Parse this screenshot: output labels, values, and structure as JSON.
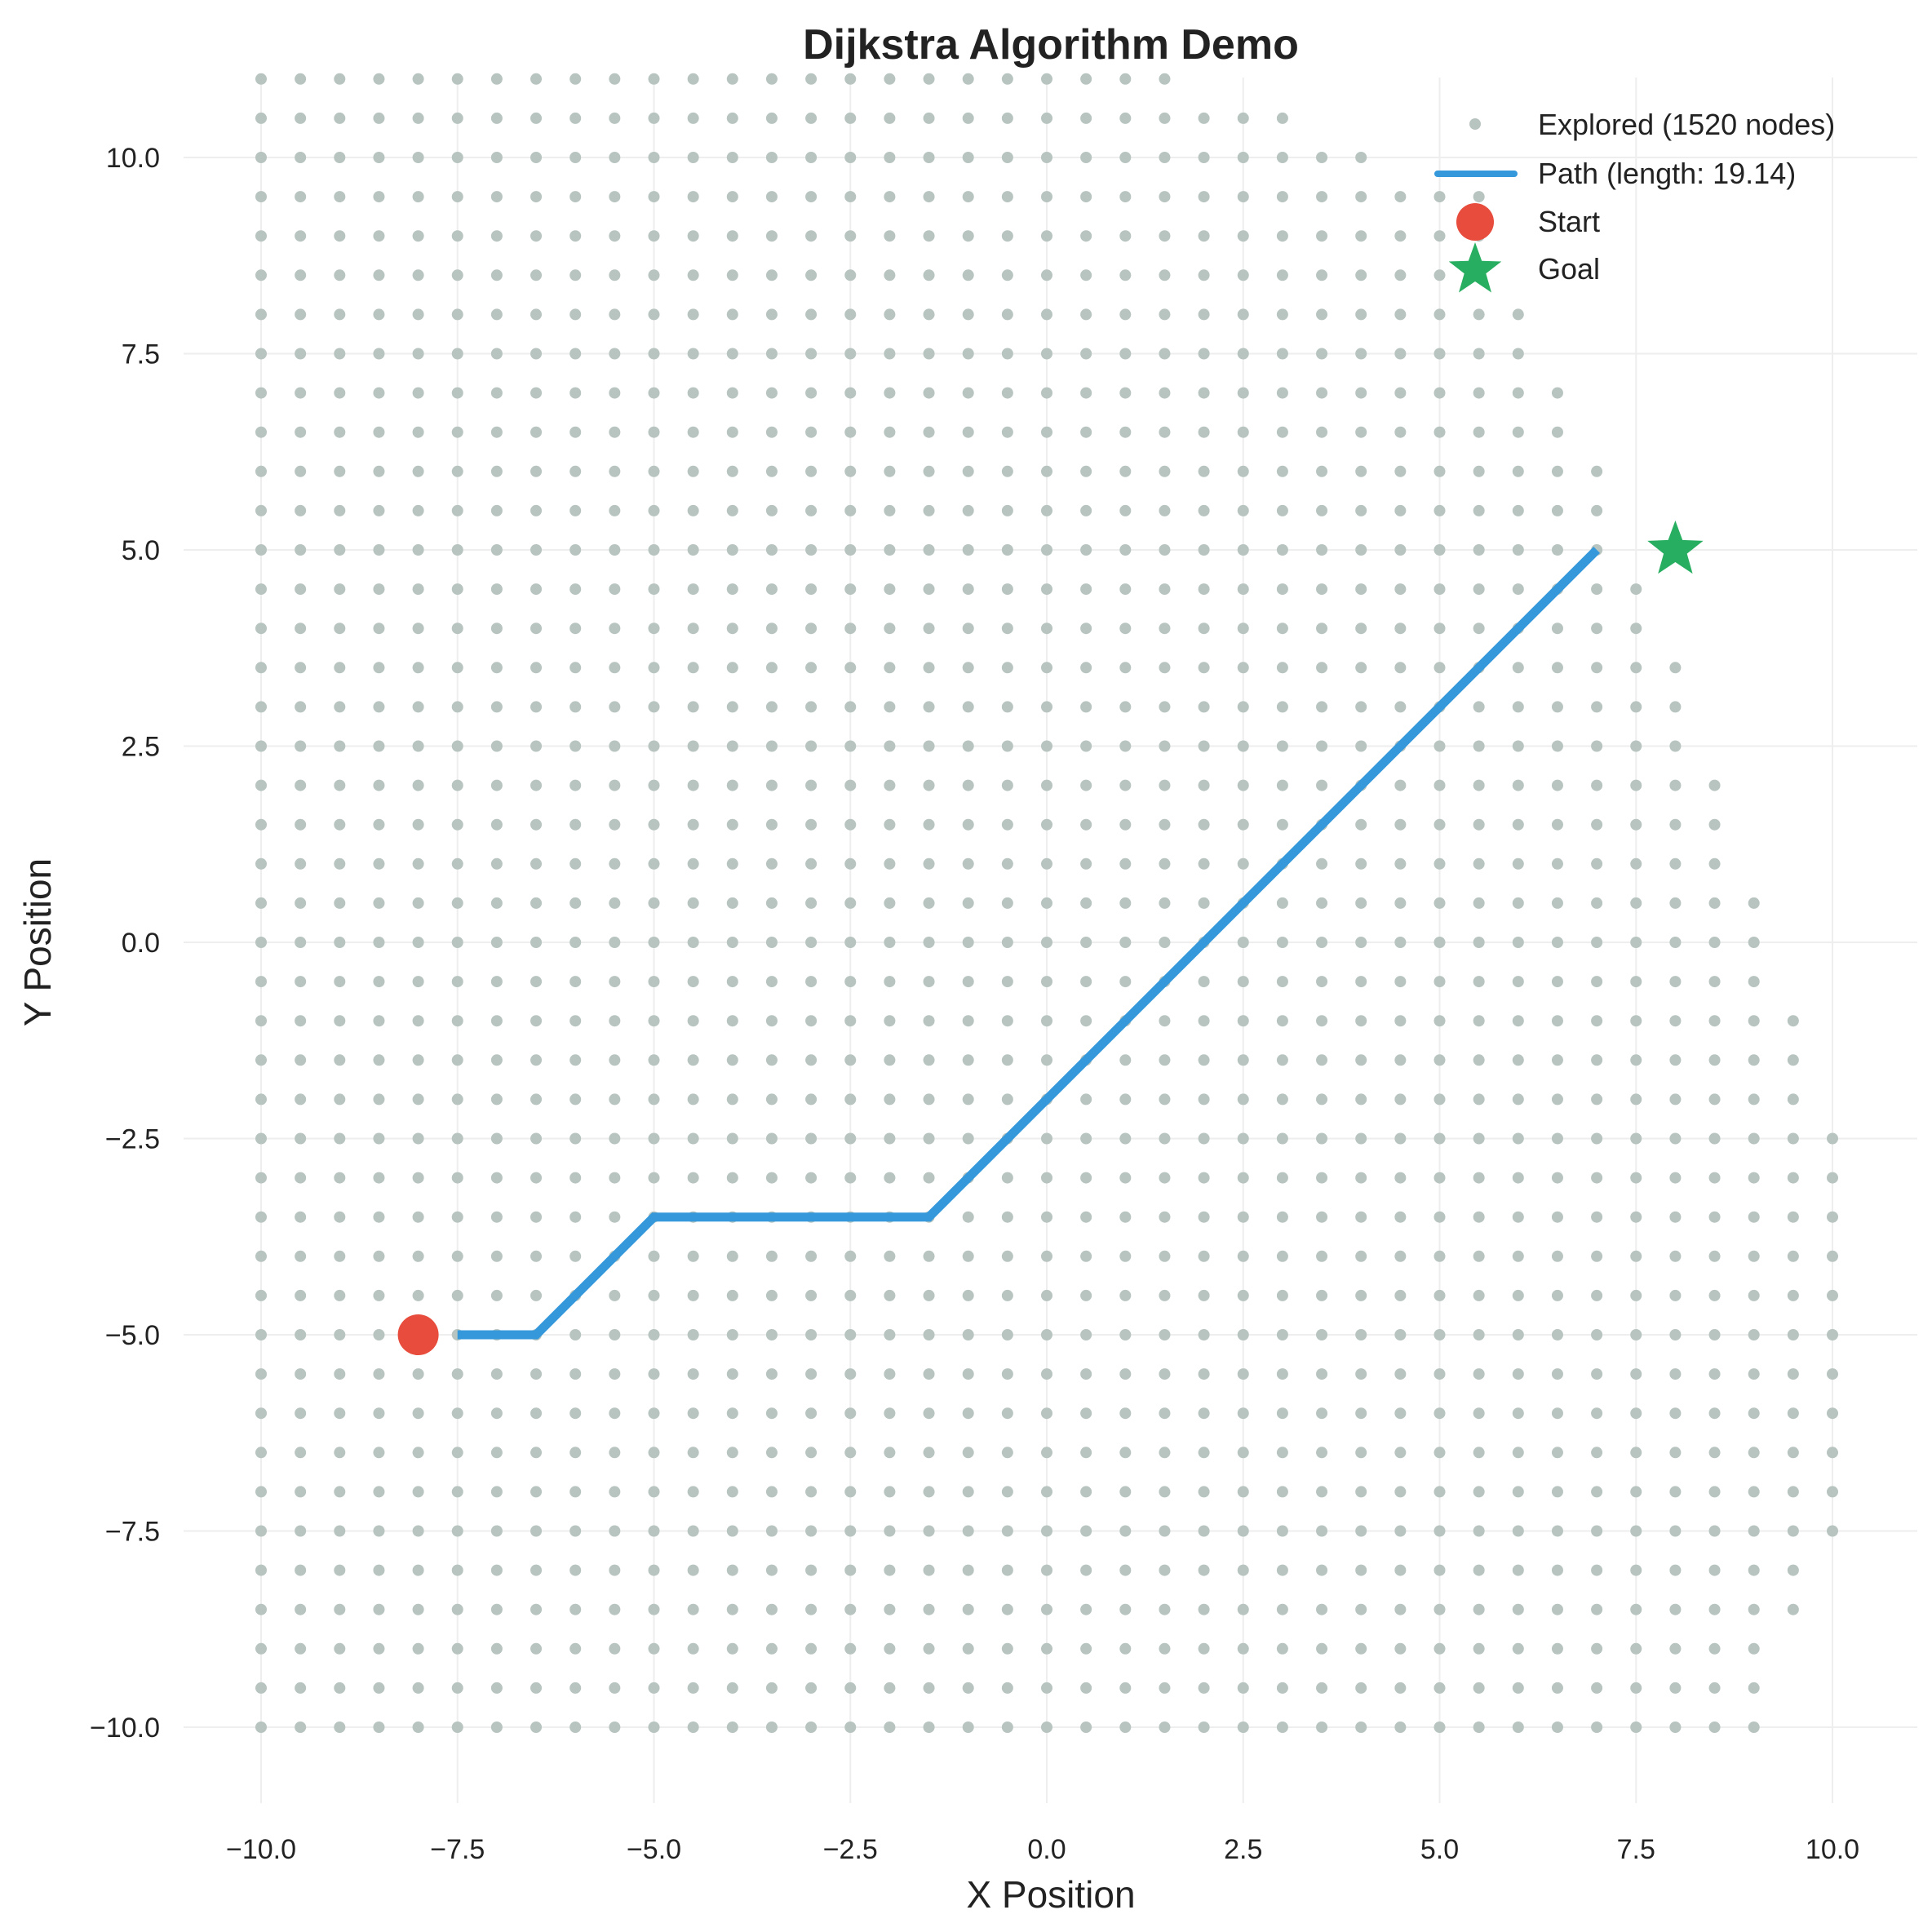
{
  "chart_data": {
    "type": "scatter",
    "title": "Dijkstra Algorithm Demo",
    "xlabel": "X Position",
    "ylabel": "Y Position",
    "xlim": [
      -10.9,
      11.0
    ],
    "ylim": [
      -11.0,
      11.0
    ],
    "grid": true,
    "legend_position": "top-right",
    "x_ticks": [
      -10.0,
      -7.5,
      -5.0,
      -2.5,
      0.0,
      2.5,
      5.0,
      7.5,
      10.0
    ],
    "x_tick_labels": [
      "−10.0",
      "−7.5",
      "−5.0",
      "−2.5",
      "0.0",
      "2.5",
      "5.0",
      "7.5",
      "10.0"
    ],
    "y_ticks": [
      -10.0,
      -7.5,
      -5.0,
      -2.5,
      0.0,
      2.5,
      5.0,
      7.5,
      10.0
    ],
    "y_tick_labels": [
      "−10.0",
      "−7.5",
      "−5.0",
      "−2.5",
      "0.0",
      "2.5",
      "5.0",
      "7.5",
      "10.0"
    ],
    "explored": {
      "name": "Explored (1520 nodes)",
      "color": "#b7c4bf",
      "grid_step": 0.5,
      "x_min": -10.0,
      "y_min": -10.0,
      "y_max": 10.0,
      "column_x_max_by_row": [
        9.0,
        9.0,
        9.0,
        9.5,
        9.5,
        10.0,
        10.0,
        10.0,
        10.0,
        10.0,
        10.0,
        10.0,
        10.0,
        10.0,
        10.0,
        10.0,
        9.5,
        9.5,
        9.5,
        9.0,
        9.0,
        9.0,
        8.5,
        8.5,
        8.5,
        8.0,
        8.0,
        8.0,
        7.5,
        7.5,
        7.0,
        7.0,
        7.0,
        6.5,
        6.5,
        6.0,
        6.0,
        5.5,
        5.5,
        5.5,
        4.0,
        3.0,
        1.5
      ]
    },
    "series": [
      {
        "name": "Path (length: 19.14)",
        "color": "#3498db",
        "x": [
          -7.5,
          -6.5,
          -5.0,
          -1.5,
          7.0
        ],
        "y": [
          -5.0,
          -5.0,
          -3.5,
          -3.5,
          5.0
        ]
      }
    ],
    "start": {
      "name": "Start",
      "x": -8.0,
      "y": -5.0,
      "color": "#e74c3c"
    },
    "goal": {
      "name": "Goal",
      "x": 8.0,
      "y": 5.0,
      "color": "#27ae60"
    }
  }
}
